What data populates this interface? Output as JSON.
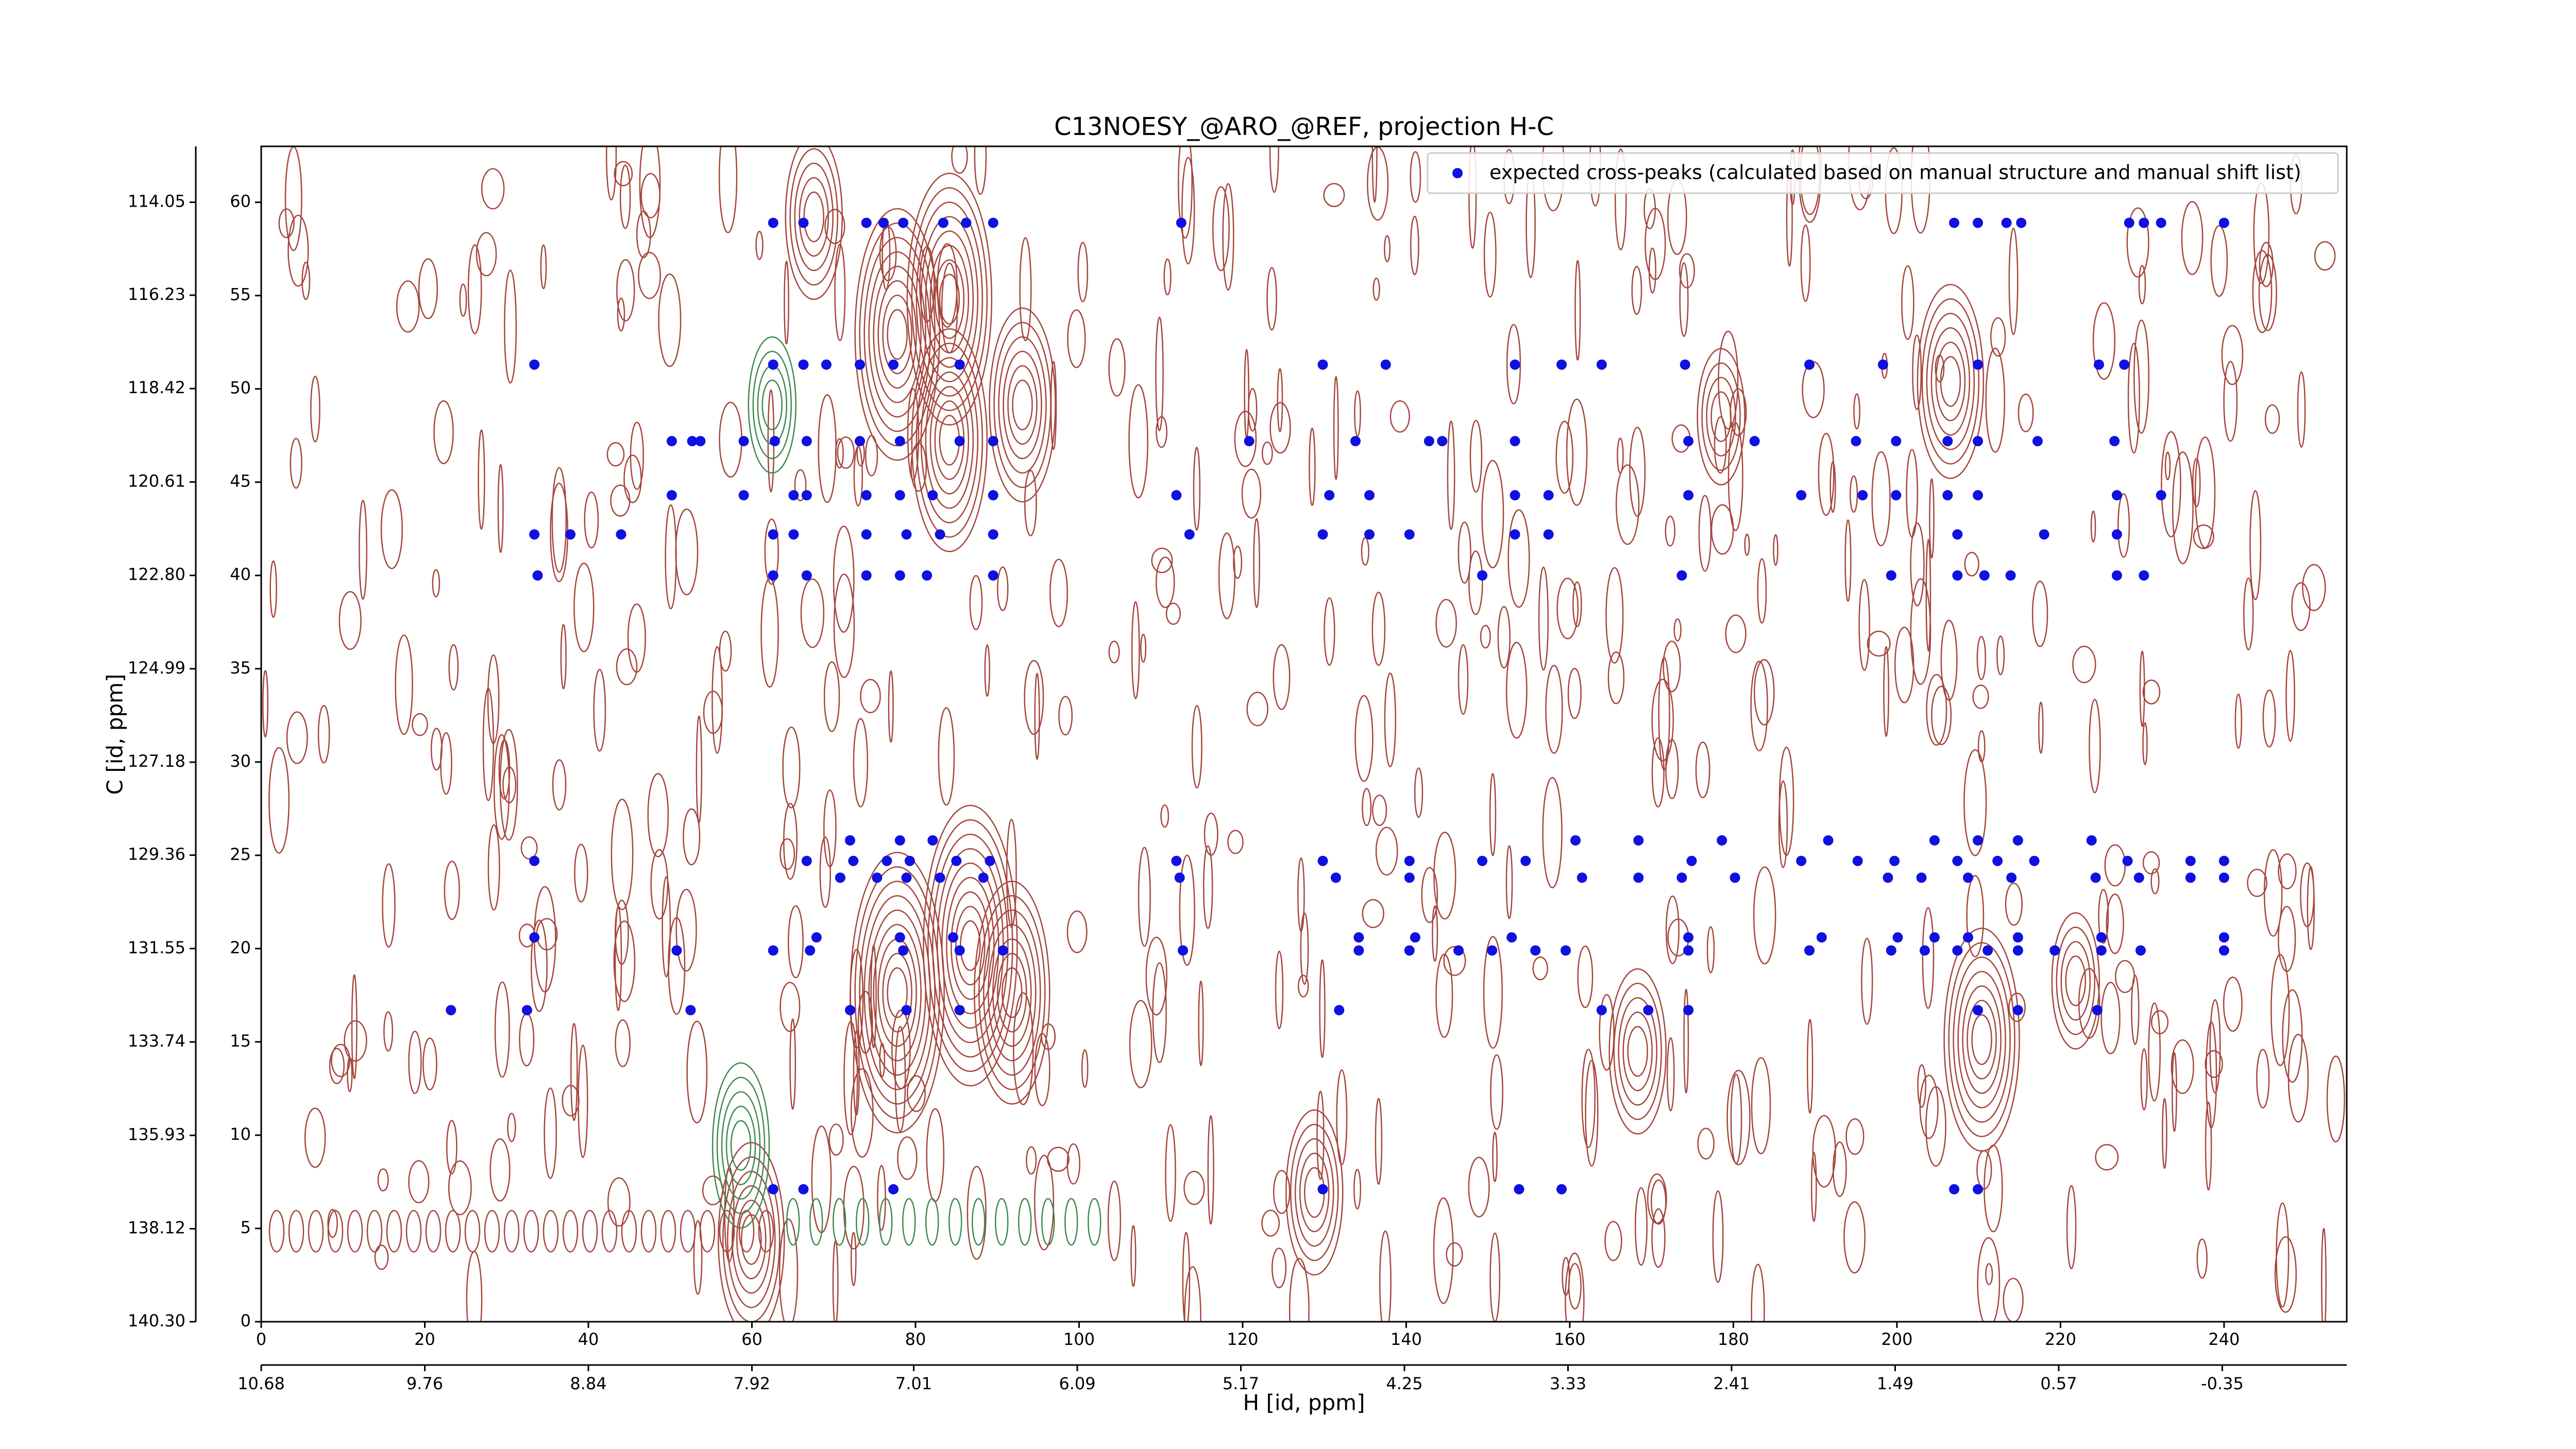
{
  "chart_data": {
    "type": "scatter",
    "title": "C13NOESY_@ARO_@REF, projection H-C",
    "xlim": [
      0,
      255
    ],
    "xticks": [
      0,
      20,
      40,
      60,
      80,
      100,
      120,
      140,
      160,
      180,
      200,
      220,
      240
    ],
    "ylim": [
      0,
      63
    ],
    "yticks": [
      0,
      5,
      10,
      15,
      20,
      25,
      30,
      35,
      40,
      45,
      50,
      55,
      60
    ],
    "x2label": "H [id, ppm]",
    "x2lim": [
      10.68,
      -1.05
    ],
    "x2ticks": [
      10.68,
      9.76,
      8.84,
      7.92,
      7.01,
      6.09,
      5.17,
      4.25,
      3.33,
      2.41,
      1.49,
      0.57,
      -0.35
    ],
    "y2label": "C [id, ppm]",
    "y2lim": [
      140.3,
      112.74
    ],
    "y2ticks": [
      {
        "value": 140.3,
        "label": "140.30"
      },
      138.12,
      135.93,
      133.74,
      131.55,
      129.36,
      127.18,
      124.99,
      {
        "value": 122.8,
        "label": "122.80"
      },
      120.61,
      118.42,
      116.23,
      114.05
    ],
    "legend": "upper right",
    "series": [
      {
        "name": "expected cross-peaks (calculated based on manual structure and manual shift list)",
        "color": "#1010e0",
        "x": [
          62.6,
          66.3,
          74,
          76.1,
          78.5,
          83.4,
          86.2,
          89.5,
          112.5,
          207,
          209.9,
          213.4,
          215.2,
          228.4,
          230.2,
          232.3,
          240,
          33.4,
          62.6,
          66.3,
          69.1,
          73.2,
          77.3,
          85.4,
          129.8,
          137.5,
          153.3,
          159,
          163.9,
          174.1,
          189.3,
          198.3,
          209.9,
          224.7,
          227.8,
          50.2,
          52.7,
          53.7,
          59,
          62.8,
          66.7,
          73.2,
          78.1,
          85.4,
          89.5,
          120.8,
          133.8,
          142.8,
          144.4,
          153.3,
          174.5,
          182.6,
          195,
          199.9,
          206.2,
          209.9,
          217.2,
          226.6,
          50.2,
          59,
          65.1,
          66.7,
          74,
          78.1,
          82.1,
          89.5,
          111.9,
          130.6,
          135.5,
          153.3,
          157.4,
          174.5,
          188.3,
          195.8,
          199.9,
          206.2,
          209.9,
          226.9,
          232.3,
          33.4,
          37.8,
          44,
          62.6,
          65.1,
          74,
          78.9,
          83,
          89.5,
          113.5,
          129.8,
          135.5,
          140.4,
          153.3,
          157.4,
          207.4,
          218,
          226.9,
          33.8,
          62.6,
          66.7,
          74,
          78.1,
          81.4,
          89.5,
          149.3,
          173.7,
          199.3,
          207.4,
          210.7,
          213.9,
          226.9,
          230.2,
          72,
          78.1,
          82.1,
          160.7,
          168.4,
          178.6,
          191.6,
          204.6,
          209.9,
          214.8,
          223.8,
          33.4,
          66.7,
          72.4,
          76.5,
          79.3,
          85,
          89.1,
          111.9,
          129.8,
          140.4,
          149.3,
          154.6,
          174.9,
          188.3,
          195.2,
          199.7,
          207.4,
          212.3,
          216.8,
          228.2,
          235.9,
          240,
          70.8,
          75.3,
          78.9,
          83,
          88.3,
          112.3,
          131.4,
          140.4,
          161.5,
          168.4,
          173.7,
          180.2,
          198.9,
          203,
          208.7,
          214,
          224.3,
          229.6,
          235.9,
          240,
          33.4,
          67.9,
          78.1,
          84.6,
          134.2,
          141.1,
          152.9,
          174.5,
          190.8,
          200.1,
          204.6,
          208.7,
          214.8,
          225,
          240,
          50.8,
          62.6,
          67.1,
          78.5,
          85.4,
          90.7,
          112.7,
          134.2,
          140.4,
          146.4,
          150.5,
          155.8,
          159.5,
          174.5,
          189.3,
          199.3,
          203.4,
          207.4,
          211.1,
          214.8,
          219.3,
          225,
          229.8,
          240,
          23.2,
          32.5,
          52.5,
          72,
          78.9,
          85.4,
          131.8,
          163.9,
          169.6,
          174.5,
          209.9,
          214.8,
          224.5,
          62.6,
          66.3,
          77.3,
          129.8,
          153.8,
          159,
          207,
          209.9
        ],
        "y": [
          58.9,
          58.9,
          58.9,
          58.9,
          58.9,
          58.9,
          58.9,
          58.9,
          58.9,
          58.9,
          58.9,
          58.9,
          58.9,
          58.9,
          58.9,
          58.9,
          58.9,
          51.3,
          51.3,
          51.3,
          51.3,
          51.3,
          51.3,
          51.3,
          51.3,
          51.3,
          51.3,
          51.3,
          51.3,
          51.3,
          51.3,
          51.3,
          51.3,
          51.3,
          51.3,
          47.2,
          47.2,
          47.2,
          47.2,
          47.2,
          47.2,
          47.2,
          47.2,
          47.2,
          47.2,
          47.2,
          47.2,
          47.2,
          47.2,
          47.2,
          47.2,
          47.2,
          47.2,
          47.2,
          47.2,
          47.2,
          47.2,
          47.2,
          44.3,
          44.3,
          44.3,
          44.3,
          44.3,
          44.3,
          44.3,
          44.3,
          44.3,
          44.3,
          44.3,
          44.3,
          44.3,
          44.3,
          44.3,
          44.3,
          44.3,
          44.3,
          44.3,
          44.3,
          44.3,
          42.2,
          42.2,
          42.2,
          42.2,
          42.2,
          42.2,
          42.2,
          42.2,
          42.2,
          42.2,
          42.2,
          42.2,
          42.2,
          42.2,
          42.2,
          42.2,
          42.2,
          42.2,
          40,
          40,
          40,
          40,
          40,
          40,
          40,
          40,
          40,
          40,
          40,
          40,
          40,
          40,
          40,
          25.8,
          25.8,
          25.8,
          25.8,
          25.8,
          25.8,
          25.8,
          25.8,
          25.8,
          25.8,
          25.8,
          24.7,
          24.7,
          24.7,
          24.7,
          24.7,
          24.7,
          24.7,
          24.7,
          24.7,
          24.7,
          24.7,
          24.7,
          24.7,
          24.7,
          24.7,
          24.7,
          24.7,
          24.7,
          24.7,
          24.7,
          24.7,
          24.7,
          23.8,
          23.8,
          23.8,
          23.8,
          23.8,
          23.8,
          23.8,
          23.8,
          23.8,
          23.8,
          23.8,
          23.8,
          23.8,
          23.8,
          23.8,
          23.8,
          23.8,
          23.8,
          23.8,
          23.8,
          20.6,
          20.6,
          20.6,
          20.6,
          20.6,
          20.6,
          20.6,
          20.6,
          20.6,
          20.6,
          20.6,
          20.6,
          20.6,
          20.6,
          20.6,
          19.9,
          19.9,
          19.9,
          19.9,
          19.9,
          19.9,
          19.9,
          19.9,
          19.9,
          19.9,
          19.9,
          19.9,
          19.9,
          19.9,
          19.9,
          19.9,
          19.9,
          19.9,
          19.9,
          19.9,
          19.9,
          19.9,
          19.9,
          19.9,
          16.7,
          16.7,
          16.7,
          16.7,
          16.7,
          16.7,
          16.7,
          16.7,
          16.7,
          16.7,
          16.7,
          16.7,
          16.7,
          7.1,
          7.1,
          7.1,
          7.1,
          7.1,
          7.1,
          7.1,
          7.1
        ]
      }
    ]
  }
}
